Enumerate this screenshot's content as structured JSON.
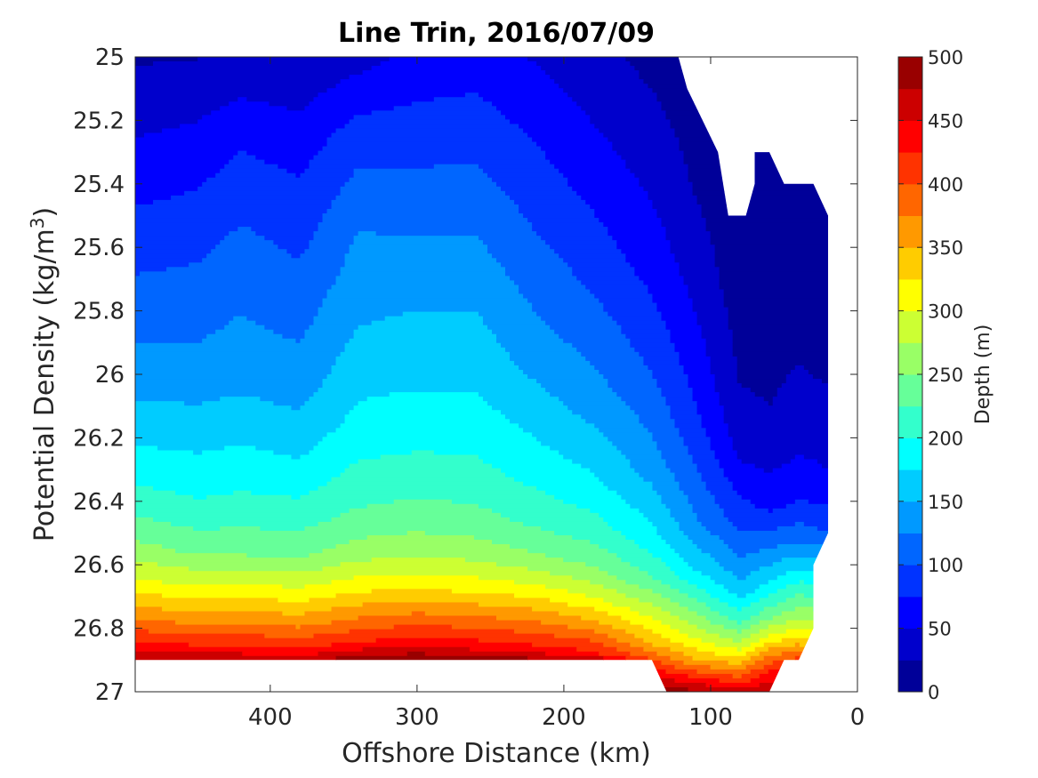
{
  "chart_data": {
    "type": "contourf",
    "title": "Line Trin, 2016/07/09",
    "xlabel": "Offshore Distance (km)",
    "ylabel_prefix": "Potential Density (kg/m",
    "ylabel_sup": "3",
    "ylabel_suffix": ")",
    "xlim": [
      492,
      0
    ],
    "ylim": [
      25,
      27
    ],
    "x_reversed": true,
    "y_reversed": true,
    "xticks": [
      400,
      300,
      200,
      100,
      0
    ],
    "yticks": [
      25,
      25.2,
      25.4,
      25.6,
      25.8,
      26,
      26.2,
      26.4,
      26.6,
      26.8,
      27
    ],
    "xtick_labels": [
      "400",
      "300",
      "200",
      "100",
      "0"
    ],
    "ytick_labels": [
      "25",
      "25.2",
      "25.4",
      "25.6",
      "25.8",
      "26",
      "26.2",
      "26.4",
      "26.6",
      "26.8",
      "27"
    ],
    "colorbar": {
      "label": "Depth (m)",
      "lim": [
        0,
        500
      ],
      "ticks": [
        0,
        50,
        100,
        150,
        200,
        250,
        300,
        350,
        400,
        450,
        500
      ],
      "tick_labels": [
        "0",
        "50",
        "100",
        "150",
        "200",
        "250",
        "300",
        "350",
        "400",
        "450",
        "500"
      ],
      "level_step": 25,
      "colormap": "jet"
    },
    "stations_km": [
      492,
      450,
      420,
      380,
      340,
      300,
      260,
      220,
      180,
      140,
      110,
      80,
      60,
      40,
      20
    ],
    "depth_profiles": [
      [
        [
          25,
          22
        ],
        [
          25.3,
          55
        ],
        [
          25.6,
          90
        ],
        [
          25.9,
          125
        ],
        [
          26.15,
          160
        ],
        [
          26.35,
          200
        ],
        [
          26.5,
          240
        ],
        [
          26.65,
          300
        ],
        [
          26.75,
          360
        ],
        [
          26.85,
          430
        ],
        [
          26.9,
          480
        ]
      ],
      [
        [
          25,
          24
        ],
        [
          25.3,
          62
        ],
        [
          25.65,
          100
        ],
        [
          26.0,
          135
        ],
        [
          26.22,
          170
        ],
        [
          26.42,
          205
        ],
        [
          26.56,
          245
        ],
        [
          26.68,
          310
        ],
        [
          26.78,
          370
        ],
        [
          26.86,
          430
        ],
        [
          26.9,
          470
        ]
      ],
      [
        [
          25,
          28
        ],
        [
          25.25,
          70
        ],
        [
          25.62,
          110
        ],
        [
          26.0,
          140
        ],
        [
          26.22,
          175
        ],
        [
          26.43,
          210
        ],
        [
          26.57,
          250
        ],
        [
          26.68,
          310
        ],
        [
          26.78,
          370
        ],
        [
          26.86,
          430
        ],
        [
          26.9,
          470
        ]
      ],
      [
        [
          25,
          28
        ],
        [
          25.35,
          72
        ],
        [
          25.8,
          115
        ],
        [
          26.05,
          140
        ],
        [
          26.24,
          170
        ],
        [
          26.44,
          210
        ],
        [
          26.58,
          250
        ],
        [
          26.69,
          310
        ],
        [
          26.79,
          370
        ],
        [
          26.87,
          430
        ],
        [
          26.9,
          470
        ]
      ],
      [
        [
          25,
          40
        ],
        [
          25.25,
          88
        ],
        [
          25.55,
          125
        ],
        [
          25.85,
          150
        ],
        [
          26.15,
          182
        ],
        [
          26.4,
          220
        ],
        [
          26.55,
          258
        ],
        [
          26.66,
          310
        ],
        [
          26.76,
          370
        ],
        [
          26.85,
          430
        ],
        [
          26.9,
          490
        ]
      ],
      [
        [
          25,
          58
        ],
        [
          25.35,
          100
        ],
        [
          25.7,
          140
        ],
        [
          26.05,
          175
        ],
        [
          26.32,
          210
        ],
        [
          26.48,
          245
        ],
        [
          26.58,
          275
        ],
        [
          26.67,
          320
        ],
        [
          26.76,
          380
        ],
        [
          26.85,
          440
        ],
        [
          26.9,
          500
        ]
      ],
      [
        [
          25,
          62
        ],
        [
          25.35,
          102
        ],
        [
          25.72,
          142
        ],
        [
          26.1,
          180
        ],
        [
          26.35,
          212
        ],
        [
          26.5,
          245
        ],
        [
          26.6,
          280
        ],
        [
          26.68,
          320
        ],
        [
          26.77,
          380
        ],
        [
          26.86,
          440
        ],
        [
          26.9,
          495
        ]
      ],
      [
        [
          25,
          48
        ],
        [
          25.3,
          78
        ],
        [
          25.6,
          105
        ],
        [
          25.95,
          140
        ],
        [
          26.25,
          182
        ],
        [
          26.45,
          215
        ],
        [
          26.58,
          255
        ],
        [
          26.68,
          310
        ],
        [
          26.77,
          370
        ],
        [
          26.86,
          430
        ],
        [
          26.9,
          480
        ]
      ],
      [
        [
          25,
          32
        ],
        [
          25.35,
          62
        ],
        [
          25.75,
          100
        ],
        [
          26.1,
          140
        ],
        [
          26.35,
          182
        ],
        [
          26.5,
          215
        ],
        [
          26.62,
          255
        ],
        [
          26.72,
          310
        ],
        [
          26.8,
          370
        ],
        [
          26.88,
          430
        ],
        [
          26.9,
          475
        ]
      ],
      [
        [
          25,
          18
        ],
        [
          25.3,
          38
        ],
        [
          25.65,
          65
        ],
        [
          26.0,
          100
        ],
        [
          26.3,
          140
        ],
        [
          26.52,
          185
        ],
        [
          26.65,
          230
        ],
        [
          26.75,
          290
        ],
        [
          26.85,
          350
        ],
        [
          26.92,
          420
        ],
        [
          26.98,
          480
        ]
      ],
      [
        [
          25.1,
          12
        ],
        [
          25.4,
          22
        ],
        [
          25.75,
          45
        ],
        [
          26.15,
          80
        ],
        [
          26.45,
          125
        ],
        [
          26.62,
          175
        ],
        [
          26.72,
          230
        ],
        [
          26.82,
          290
        ],
        [
          26.9,
          350
        ],
        [
          26.95,
          420
        ],
        [
          27.0,
          480
        ]
      ],
      [
        [
          25.5,
          6
        ],
        [
          25.75,
          12
        ],
        [
          26.0,
          22
        ],
        [
          26.25,
          45
        ],
        [
          26.5,
          100
        ],
        [
          26.68,
          160
        ],
        [
          26.78,
          220
        ],
        [
          26.86,
          290
        ],
        [
          26.92,
          360
        ],
        [
          26.97,
          420
        ],
        [
          27.0,
          470
        ]
      ],
      [
        [
          25.3,
          4
        ],
        [
          25.85,
          12
        ],
        [
          26.2,
          30
        ],
        [
          26.42,
          70
        ],
        [
          26.56,
          130
        ],
        [
          26.68,
          190
        ],
        [
          26.77,
          250
        ],
        [
          26.84,
          320
        ],
        [
          26.9,
          390
        ],
        [
          26.95,
          440
        ],
        [
          27.0,
          470
        ]
      ],
      [
        [
          25.4,
          5
        ],
        [
          25.85,
          18
        ],
        [
          26.2,
          40
        ],
        [
          26.4,
          75
        ],
        [
          26.52,
          120
        ],
        [
          26.62,
          180
        ],
        [
          26.72,
          240
        ],
        [
          26.8,
          300
        ],
        [
          26.86,
          360
        ],
        [
          26.9,
          410
        ],
        [
          26.93,
          430
        ]
      ],
      [
        [
          25.5,
          4
        ],
        [
          26.0,
          22
        ],
        [
          26.3,
          50
        ],
        [
          26.45,
          85
        ],
        [
          26.5,
          100
        ]
      ]
    ],
    "data_mask_polygon": [
      [
        492,
        25
      ],
      [
        122,
        25
      ],
      [
        116,
        25.1
      ],
      [
        95,
        25.3
      ],
      [
        88,
        25.5
      ],
      [
        76,
        25.5
      ],
      [
        70,
        25.4
      ],
      [
        70,
        25.3
      ],
      [
        60,
        25.3
      ],
      [
        50,
        25.4
      ],
      [
        30,
        25.4
      ],
      [
        20,
        25.5
      ],
      [
        20,
        26.5
      ],
      [
        30,
        26.6
      ],
      [
        30,
        26.8
      ],
      [
        40,
        26.9
      ],
      [
        50,
        26.9
      ],
      [
        60,
        27.0
      ],
      [
        130,
        27.0
      ],
      [
        140,
        26.9
      ],
      [
        492,
        26.9
      ]
    ]
  }
}
